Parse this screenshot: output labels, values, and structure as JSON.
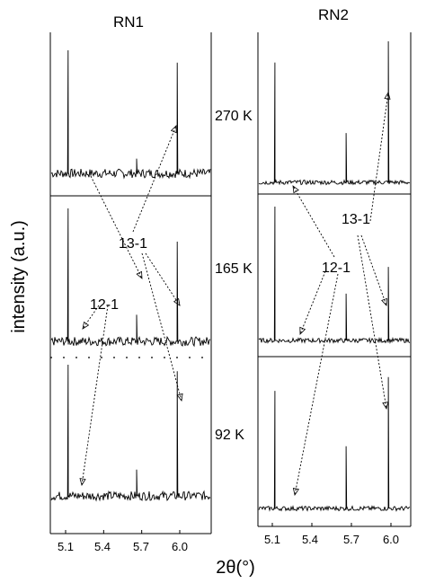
{
  "chart_data": {
    "type": "line",
    "ylabel": "intensity (a.u.)",
    "xlabel": "2θ(°)",
    "xticks": [
      "5.1",
      "5.4",
      "5.7",
      "6.0"
    ],
    "xlim": [
      5.0,
      6.2
    ],
    "temperatures": [
      "270 K",
      "165 K",
      "92 K"
    ],
    "reflection_labels": [
      "12-1",
      "13-1"
    ],
    "panels": [
      {
        "name": "RN1",
        "series": [
          {
            "temperature": "270 K",
            "peaks": [
              {
                "x": 5.12,
                "height": 1.0
              },
              {
                "x": 5.66,
                "height": 0.12
              },
              {
                "x": 5.98,
                "height": 0.9
              }
            ]
          },
          {
            "temperature": "165 K",
            "peaks": [
              {
                "x": 5.12,
                "height": 1.0
              },
              {
                "x": 5.66,
                "height": 0.2
              },
              {
                "x": 5.98,
                "height": 0.75
              }
            ]
          },
          {
            "temperature": "92 K",
            "peaks": [
              {
                "x": 5.12,
                "height": 1.0
              },
              {
                "x": 5.66,
                "height": 0.2
              },
              {
                "x": 5.98,
                "height": 0.95
              }
            ]
          }
        ]
      },
      {
        "name": "RN2",
        "series": [
          {
            "temperature": "270 K",
            "peaks": [
              {
                "x": 5.12,
                "height": 0.85
              },
              {
                "x": 5.66,
                "height": 0.35
              },
              {
                "x": 5.98,
                "height": 1.0
              }
            ]
          },
          {
            "temperature": "165 K",
            "peaks": [
              {
                "x": 5.12,
                "height": 1.0
              },
              {
                "x": 5.66,
                "height": 0.35
              },
              {
                "x": 5.98,
                "height": 0.55
              }
            ]
          },
          {
            "temperature": "92 K",
            "peaks": [
              {
                "x": 5.12,
                "height": 0.85
              },
              {
                "x": 5.66,
                "height": 0.45
              },
              {
                "x": 5.98,
                "height": 0.95
              }
            ]
          }
        ]
      }
    ]
  }
}
